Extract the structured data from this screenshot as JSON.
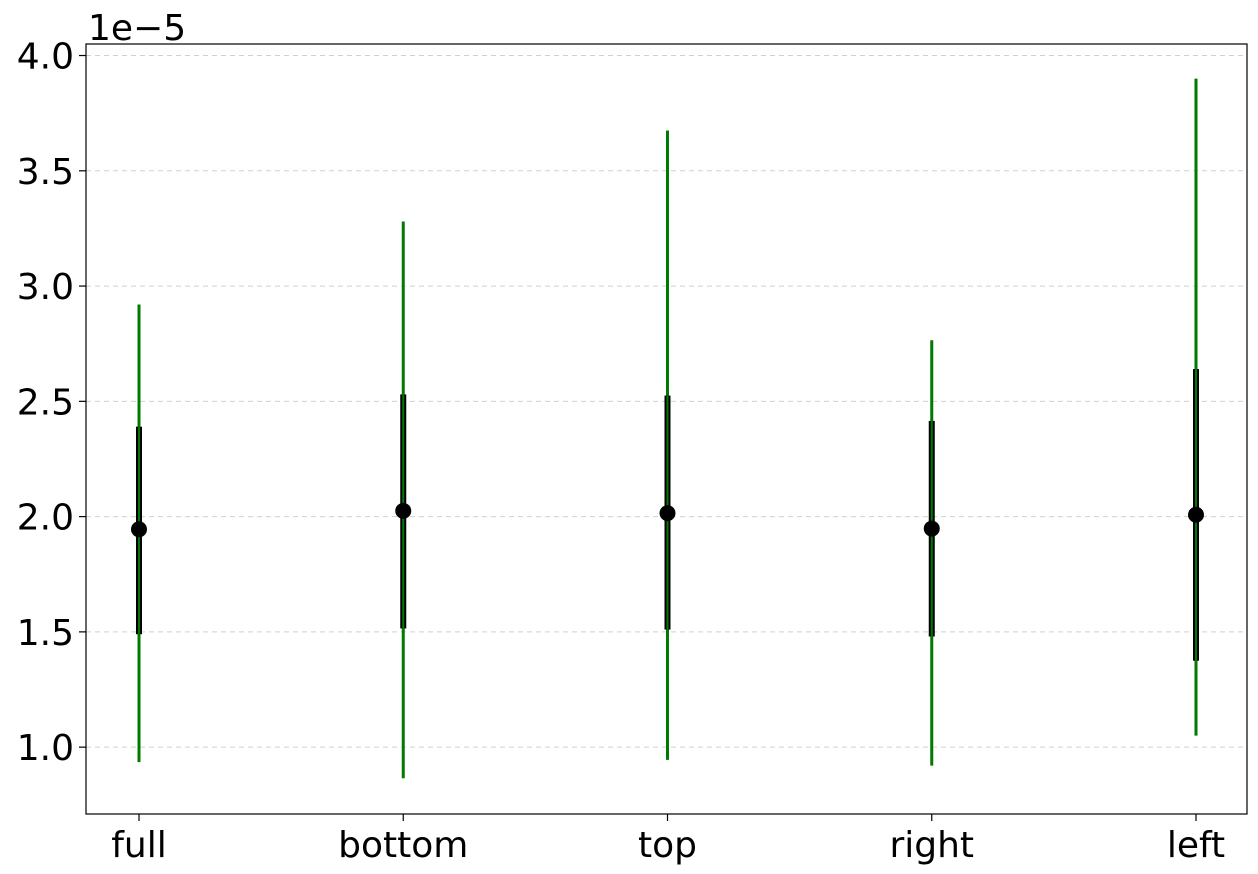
{
  "chart_data": {
    "type": "errorbar",
    "categories": [
      "full",
      "bottom",
      "top",
      "right",
      "left"
    ],
    "y_multiplier_label": "1e−5",
    "y_scale": 1e-05,
    "y_ticks": [
      1.0,
      1.5,
      2.0,
      2.5,
      3.0,
      3.5,
      4.0
    ],
    "y_tick_labels": [
      "1.0",
      "1.5",
      "2.0",
      "2.5",
      "3.0",
      "3.5",
      "4.0"
    ],
    "ylim": [
      0.71,
      4.05
    ],
    "grid": "y-dashed",
    "series": [
      {
        "values": [
          1.945,
          2.025,
          2.015,
          1.948,
          2.008
        ],
        "inner_low": [
          1.49,
          1.515,
          1.51,
          1.48,
          1.375
        ],
        "inner_high": [
          2.39,
          2.53,
          2.525,
          2.415,
          2.64
        ],
        "outer_low": [
          0.935,
          0.865,
          0.945,
          0.92,
          1.05
        ],
        "outer_high": [
          2.92,
          3.28,
          3.675,
          2.765,
          3.9
        ]
      }
    ],
    "colors": {
      "marker": "#000000",
      "inner_bar": "#000000",
      "outer_bar": "#007a00",
      "grid": "#d0d0d0"
    }
  }
}
